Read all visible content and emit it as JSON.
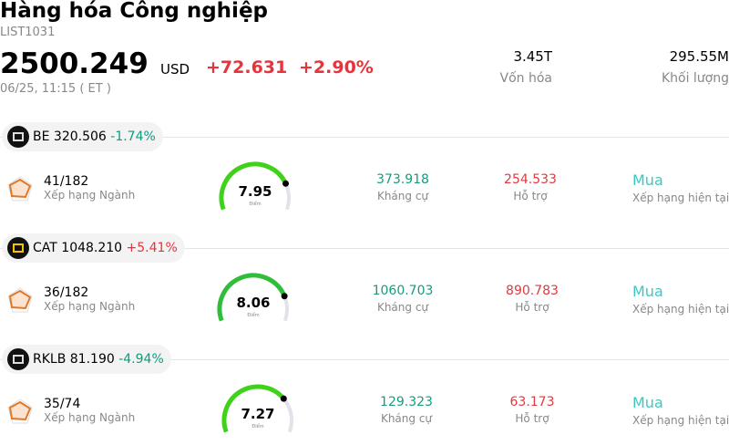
{
  "header": {
    "title": "Hàng hóa Công nghiệp",
    "code": "LIST1031",
    "price": "2500.249",
    "currency": "USD",
    "change": "+72.631",
    "change_pct": "+2.90%",
    "time": "06/25, 11:15  ( ET )",
    "stats": [
      {
        "value": "3.45T",
        "label": "Vốn hóa"
      },
      {
        "value": "295.55M",
        "label": "Khối lượng"
      }
    ]
  },
  "stocks": [
    {
      "ticker": "BE",
      "price": "320.506",
      "change": "-1.74%",
      "rank": "41/182",
      "rank_label": "Xếp hạng Ngành",
      "score": 7.95,
      "score_label": "Điểm",
      "resistance": "373.918",
      "resistance_label": "Kháng cự",
      "support": "254.533",
      "support_label": "Hỗ trợ",
      "rating": "Mua",
      "rating_label": "Xếp hạng hiện tại"
    },
    {
      "ticker": "CAT",
      "price": "1048.210",
      "change": "+5.41%",
      "rank": "36/182",
      "rank_label": "Xếp hạng Ngành",
      "score": 8.06,
      "score_label": "Điểm",
      "resistance": "1060.703",
      "resistance_label": "Kháng cự",
      "support": "890.783",
      "support_label": "Hỗ trợ",
      "rating": "Mua",
      "rating_label": "Xếp hạng hiện tại"
    },
    {
      "ticker": "RKLB",
      "price": "81.190",
      "change": "-4.94%",
      "rank": "35/74",
      "rank_label": "Xếp hạng Ngành",
      "score": 7.27,
      "score_label": "Điểm",
      "resistance": "129.323",
      "resistance_label": "Kháng cự",
      "support": "63.173",
      "support_label": "Hỗ trợ",
      "rating": "Mua",
      "rating_label": "Xếp hạng hiện tại"
    }
  ]
}
